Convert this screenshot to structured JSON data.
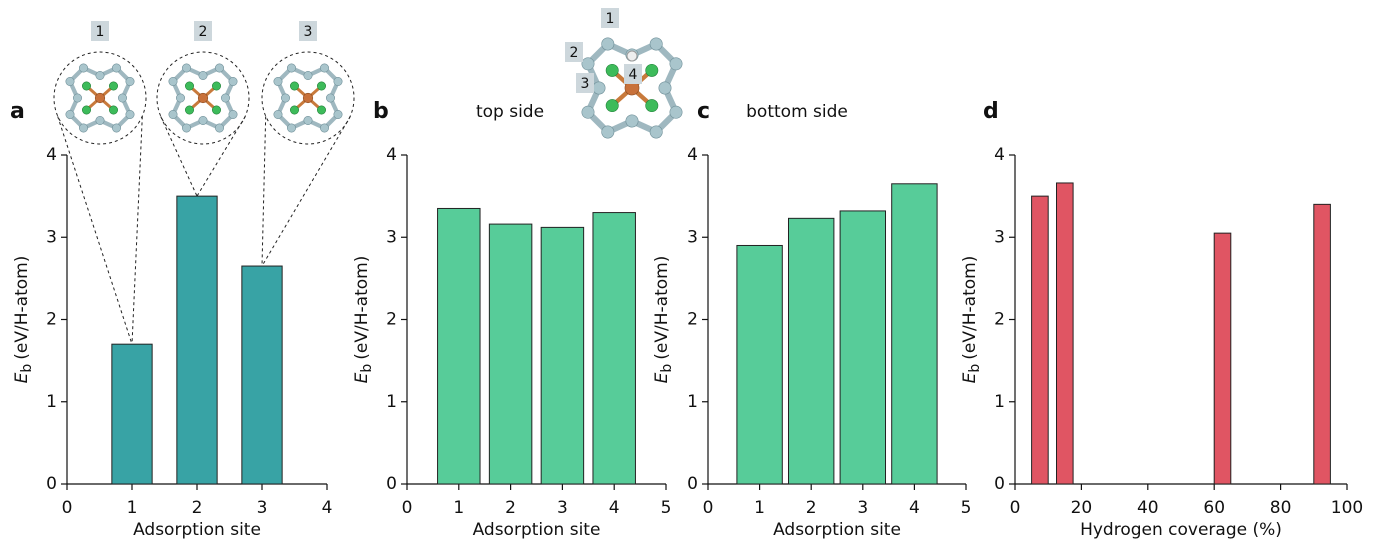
{
  "chart_data": [
    {
      "type": "bar",
      "panel": "a",
      "x": [
        1,
        2,
        3
      ],
      "values": [
        1.7,
        3.5,
        2.65
      ],
      "xlim": [
        0,
        4
      ],
      "xticks": [
        0,
        1,
        2,
        3,
        4
      ],
      "ylim": [
        0,
        4
      ],
      "yticks": [
        0,
        1,
        2,
        3,
        4
      ],
      "xlabel": "Adsorption site",
      "ylabel": {
        "symbol": "E",
        "subscript": "b",
        "unit": "(eV/H-atom)"
      },
      "color": "#38a3a5",
      "inset_labels": [
        "1",
        "2",
        "3"
      ]
    },
    {
      "type": "bar",
      "panel": "b",
      "subtitle": "top side",
      "x": [
        1,
        2,
        3,
        4
      ],
      "values": [
        3.35,
        3.16,
        3.12,
        3.3
      ],
      "xlim": [
        0,
        5
      ],
      "xticks": [
        0,
        1,
        2,
        3,
        4,
        5
      ],
      "ylim": [
        0,
        4
      ],
      "yticks": [
        0,
        1,
        2,
        3,
        4
      ],
      "xlabel": "Adsorption site",
      "ylabel": {
        "symbol": "E",
        "subscript": "b",
        "unit": "(eV/H-atom)"
      },
      "color": "#57cc99",
      "inset_labels": [
        "1",
        "2",
        "3",
        "4"
      ]
    },
    {
      "type": "bar",
      "panel": "c",
      "subtitle": "bottom side",
      "x": [
        1,
        2,
        3,
        4
      ],
      "values": [
        2.9,
        3.23,
        3.32,
        3.65
      ],
      "xlim": [
        0,
        5
      ],
      "xticks": [
        0,
        1,
        2,
        3,
        4,
        5
      ],
      "ylim": [
        0,
        4
      ],
      "yticks": [
        0,
        1,
        2,
        3,
        4
      ],
      "xlabel": "Adsorption site",
      "ylabel": {
        "symbol": "E",
        "subscript": "b",
        "unit": "(eV/H-atom)"
      },
      "color": "#57cc99"
    },
    {
      "type": "bar",
      "panel": "d",
      "x": [
        7.5,
        15,
        62.5,
        92.5
      ],
      "values": [
        3.5,
        3.66,
        3.05,
        3.4
      ],
      "xlim": [
        0,
        100
      ],
      "xticks": [
        0,
        20,
        40,
        60,
        80,
        100
      ],
      "ylim": [
        0,
        4
      ],
      "yticks": [
        0,
        1,
        2,
        3,
        4
      ],
      "xlabel": "Hydrogen coverage (%)",
      "ylabel": {
        "symbol": "E",
        "subscript": "b",
        "unit": "(eV/H-atom)"
      },
      "color": "#e05563"
    }
  ]
}
